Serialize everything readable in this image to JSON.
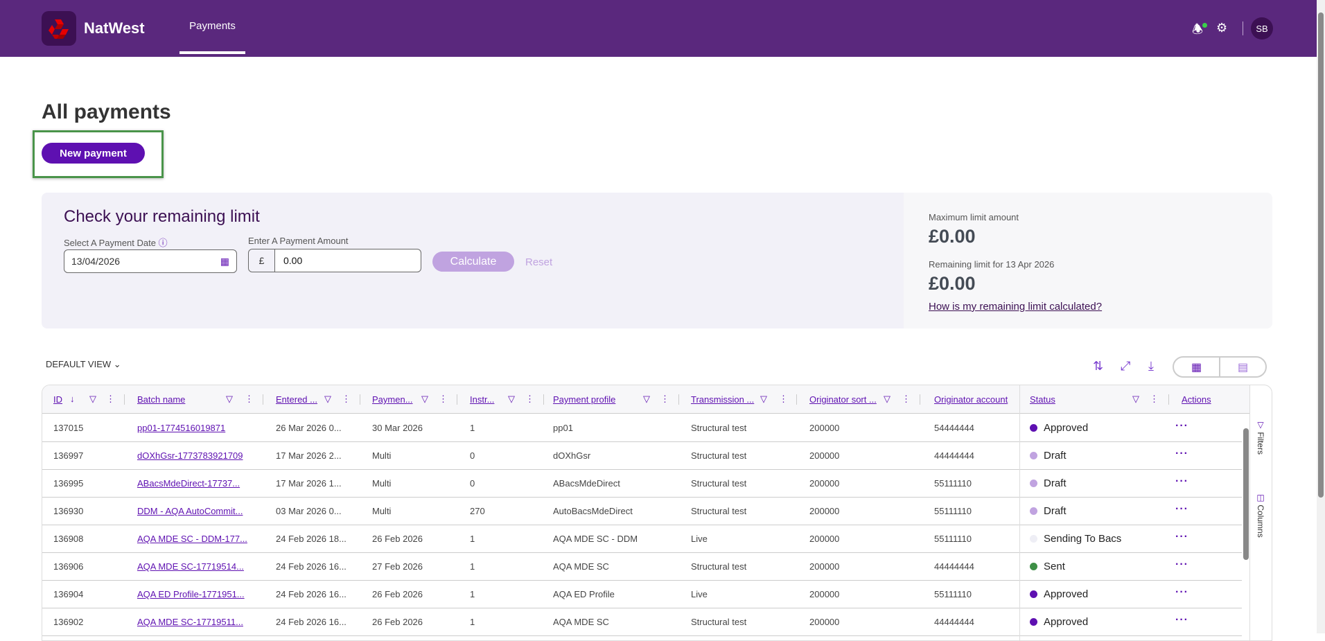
{
  "header": {
    "brand": "NatWest",
    "nav": [
      {
        "label": "Payments",
        "active": true
      }
    ],
    "avatar": "SB",
    "icons": [
      "bell-icon",
      "gear-icon"
    ],
    "colors": {
      "header": "#5a287d",
      "accent": "#5e10b1"
    }
  },
  "page": {
    "title": "All payments",
    "new_payment": "New payment"
  },
  "limit": {
    "title": "Check your remaining limit",
    "date_label": "Select A Payment Date",
    "date_value": "13/04/2026",
    "amount_label": "Enter A Payment Amount",
    "currency": "£",
    "amount_value": "0.00",
    "calculate": "Calculate",
    "reset": "Reset",
    "max_label": "Maximum limit amount",
    "max_value": "£0.00",
    "remaining_label": "Remaining limit for 13 Apr 2026",
    "remaining_value": "£0.00",
    "help_link": "How is my remaining limit calculated?"
  },
  "toolbar": {
    "view": "DEFAULT VIEW"
  },
  "table": {
    "columns": [
      "ID",
      "Batch name",
      "Entered ...",
      "Paymen...",
      "Instr...",
      "Payment profile",
      "Transmission ...",
      "Originator sort ...",
      "Originator account",
      "Status",
      "Actions"
    ],
    "rows": [
      {
        "id": "137015",
        "batch": "pp01-1774516019871",
        "entered": "26 Mar 2026 0...",
        "payment": "30 Mar 2026",
        "instr": "1",
        "profile": "pp01",
        "transmission": "Structural test",
        "sort": "200000",
        "account": "54444444",
        "status": "Approved",
        "status_color": "#5e10b1"
      },
      {
        "id": "136997",
        "batch": "dOXhGsr-1773783921709",
        "entered": "17 Mar 2026 2...",
        "payment": "Multi",
        "instr": "0",
        "profile": "dOXhGsr",
        "transmission": "Structural test",
        "sort": "200000",
        "account": "44444444",
        "status": "Draft",
        "status_color": "#c0a3e0"
      },
      {
        "id": "136995",
        "batch": "ABacsMdeDirect-17737...",
        "entered": "17 Mar 2026 1...",
        "payment": "Multi",
        "instr": "0",
        "profile": "ABacsMdeDirect",
        "transmission": "Structural test",
        "sort": "200000",
        "account": "55111110",
        "status": "Draft",
        "status_color": "#c0a3e0"
      },
      {
        "id": "136930",
        "batch": "DDM - AQA AutoCommit...",
        "entered": "03 Mar 2026 0...",
        "payment": "Multi",
        "instr": "270",
        "profile": "AutoBacsMdeDirect",
        "transmission": "Structural test",
        "sort": "200000",
        "account": "55111110",
        "status": "Draft",
        "status_color": "#c0a3e0"
      },
      {
        "id": "136908",
        "batch": "AQA MDE SC - DDM-177...",
        "entered": "24 Feb 2026 18...",
        "payment": "26 Feb 2026",
        "instr": "1",
        "profile": "AQA MDE SC - DDM",
        "transmission": "Live",
        "sort": "200000",
        "account": "55111110",
        "status": "Sending To Bacs",
        "status_color": "#eeeef5"
      },
      {
        "id": "136906",
        "batch": "AQA MDE SC-17719514...",
        "entered": "24 Feb 2026 16...",
        "payment": "27 Feb 2026",
        "instr": "1",
        "profile": "AQA MDE SC",
        "transmission": "Structural test",
        "sort": "200000",
        "account": "44444444",
        "status": "Sent",
        "status_color": "#3d8f46"
      },
      {
        "id": "136904",
        "batch": "AQA ED Profile-1771951...",
        "entered": "24 Feb 2026 16...",
        "payment": "26 Feb 2026",
        "instr": "1",
        "profile": "AQA ED Profile",
        "transmission": "Live",
        "sort": "200000",
        "account": "55111110",
        "status": "Approved",
        "status_color": "#5e10b1"
      },
      {
        "id": "136902",
        "batch": "AQA MDE SC-17719511...",
        "entered": "24 Feb 2026 16...",
        "payment": "26 Feb 2026",
        "instr": "1",
        "profile": "AQA MDE SC",
        "transmission": "Structural test",
        "sort": "200000",
        "account": "44444444",
        "status": "Approved",
        "status_color": "#5e10b1"
      }
    ]
  },
  "side": {
    "filters": "Filters",
    "columns": "Columns"
  }
}
